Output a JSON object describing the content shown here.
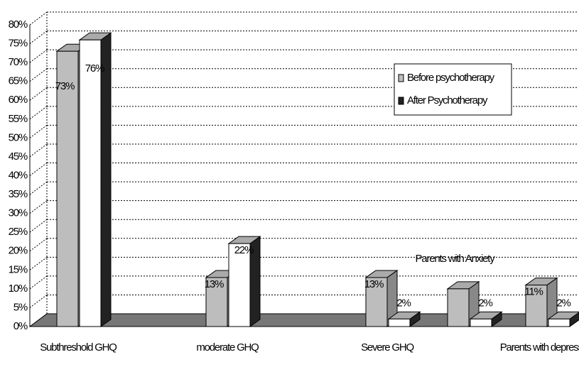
{
  "chart_data": {
    "type": "bar3d",
    "categories": [
      "Subthreshold GHQ",
      "moderate GHQ",
      "Severe GHQ",
      "Parents with Anxiety",
      "Parents with depression"
    ],
    "series": [
      {
        "name": "Before psychotherapy",
        "color": "#bdbdbd",
        "values": [
          73,
          13,
          13,
          10,
          11
        ],
        "value_labels": [
          "73%",
          "13%",
          "13%",
          null,
          "11%"
        ]
      },
      {
        "name": "After Psychotherapy",
        "color": "#ffffff",
        "values": [
          76,
          22,
          2,
          2,
          2
        ],
        "value_labels": [
          "76%",
          "22%",
          "2%",
          "2%",
          "2%"
        ]
      }
    ],
    "ylim": [
      0,
      80
    ],
    "yticks": [
      {
        "value": 0,
        "label": "0%"
      },
      {
        "value": 5,
        "label": "5%"
      },
      {
        "value": 10,
        "label": "10%"
      },
      {
        "value": 15,
        "label": "15%"
      },
      {
        "value": 20,
        "label": "20%"
      },
      {
        "value": 25,
        "label": "25%"
      },
      {
        "value": 30,
        "label": "30%"
      },
      {
        "value": 35,
        "label": "35%"
      },
      {
        "value": 40,
        "label": "40%"
      },
      {
        "value": 45,
        "label": "45%"
      },
      {
        "value": 50,
        "label": "50%"
      },
      {
        "value": 55,
        "label": "55%"
      },
      {
        "value": 60,
        "label": "60%"
      },
      {
        "value": 65,
        "label": "65%"
      },
      {
        "value": 70,
        "label": "70%"
      },
      {
        "value": 75,
        "label": "75%"
      },
      {
        "value": 80,
        "label": "80%"
      }
    ],
    "grid": true,
    "legend": "top-right"
  }
}
